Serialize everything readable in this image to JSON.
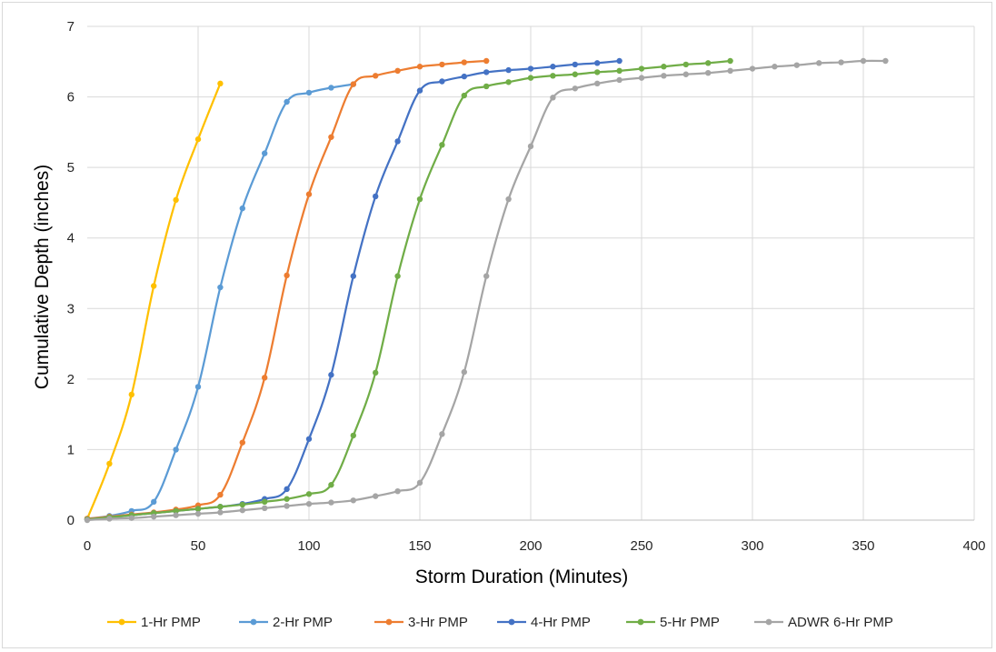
{
  "chart_data": {
    "type": "line",
    "title": "",
    "xlabel": "Storm Duration (Minutes)",
    "ylabel": "Cumulative Depth (inches)",
    "xlim": [
      0,
      400
    ],
    "ylim": [
      0,
      7
    ],
    "xticks": [
      0,
      50,
      100,
      150,
      200,
      250,
      300,
      350,
      400
    ],
    "yticks": [
      0,
      1,
      2,
      3,
      4,
      5,
      6,
      7
    ],
    "grid": true,
    "legend_position": "bottom",
    "series": [
      {
        "name": "1-Hr PMP",
        "color": "#ffc000",
        "x": [
          0,
          10,
          20,
          30,
          40,
          50,
          60
        ],
        "y": [
          0.02,
          0.8,
          1.78,
          3.32,
          4.54,
          5.4,
          6.19
        ]
      },
      {
        "name": "2-Hr PMP",
        "color": "#5b9bd5",
        "x": [
          0,
          10,
          20,
          30,
          40,
          50,
          60,
          70,
          80,
          90,
          100,
          110,
          120
        ],
        "y": [
          0.02,
          0.06,
          0.13,
          0.26,
          1.0,
          1.89,
          3.3,
          4.42,
          5.2,
          5.93,
          6.06,
          6.13,
          6.18
        ]
      },
      {
        "name": "3-Hr PMP",
        "color": "#ed7d31",
        "x": [
          0,
          10,
          20,
          30,
          40,
          50,
          60,
          70,
          80,
          90,
          100,
          110,
          120,
          130,
          140,
          150,
          160,
          170,
          180
        ],
        "y": [
          0.02,
          0.05,
          0.08,
          0.11,
          0.15,
          0.21,
          0.36,
          1.1,
          2.02,
          3.47,
          4.62,
          5.43,
          6.18,
          6.3,
          6.37,
          6.43,
          6.46,
          6.49,
          6.51
        ]
      },
      {
        "name": "4-Hr PMP",
        "color": "#4472c4",
        "x": [
          0,
          10,
          20,
          30,
          40,
          50,
          60,
          70,
          80,
          90,
          100,
          110,
          120,
          130,
          140,
          150,
          160,
          170,
          180,
          190,
          200,
          210,
          220,
          230,
          240
        ],
        "y": [
          0.01,
          0.04,
          0.07,
          0.1,
          0.13,
          0.16,
          0.19,
          0.23,
          0.3,
          0.44,
          1.15,
          2.06,
          3.46,
          4.59,
          5.37,
          6.09,
          6.22,
          6.29,
          6.35,
          6.38,
          6.4,
          6.43,
          6.46,
          6.48,
          6.51
        ]
      },
      {
        "name": "5-Hr PMP",
        "color": "#70ad47",
        "x": [
          0,
          10,
          20,
          30,
          40,
          50,
          60,
          70,
          80,
          90,
          100,
          110,
          120,
          130,
          140,
          150,
          160,
          170,
          180,
          190,
          200,
          210,
          220,
          230,
          240,
          250,
          260,
          270,
          280,
          290
        ],
        "y": [
          0.01,
          0.04,
          0.07,
          0.1,
          0.13,
          0.16,
          0.19,
          0.22,
          0.26,
          0.3,
          0.37,
          0.5,
          1.2,
          2.09,
          3.46,
          4.55,
          5.32,
          6.02,
          6.15,
          6.21,
          6.27,
          6.3,
          6.32,
          6.35,
          6.37,
          6.4,
          6.43,
          6.46,
          6.48,
          6.51
        ]
      },
      {
        "name": "ADWR 6-Hr PMP",
        "color": "#a5a5a5",
        "x": [
          0,
          10,
          20,
          30,
          40,
          50,
          60,
          70,
          80,
          90,
          100,
          110,
          120,
          130,
          140,
          150,
          160,
          170,
          180,
          190,
          200,
          210,
          220,
          230,
          240,
          250,
          260,
          270,
          280,
          290,
          300,
          310,
          320,
          330,
          340,
          350,
          360
        ],
        "y": [
          0.0,
          0.02,
          0.03,
          0.05,
          0.07,
          0.09,
          0.11,
          0.14,
          0.17,
          0.2,
          0.23,
          0.25,
          0.28,
          0.34,
          0.41,
          0.53,
          1.22,
          2.1,
          3.46,
          4.55,
          5.3,
          5.99,
          6.12,
          6.19,
          6.24,
          6.27,
          6.3,
          6.32,
          6.34,
          6.37,
          6.4,
          6.43,
          6.45,
          6.48,
          6.49,
          6.51,
          6.51
        ]
      }
    ]
  }
}
